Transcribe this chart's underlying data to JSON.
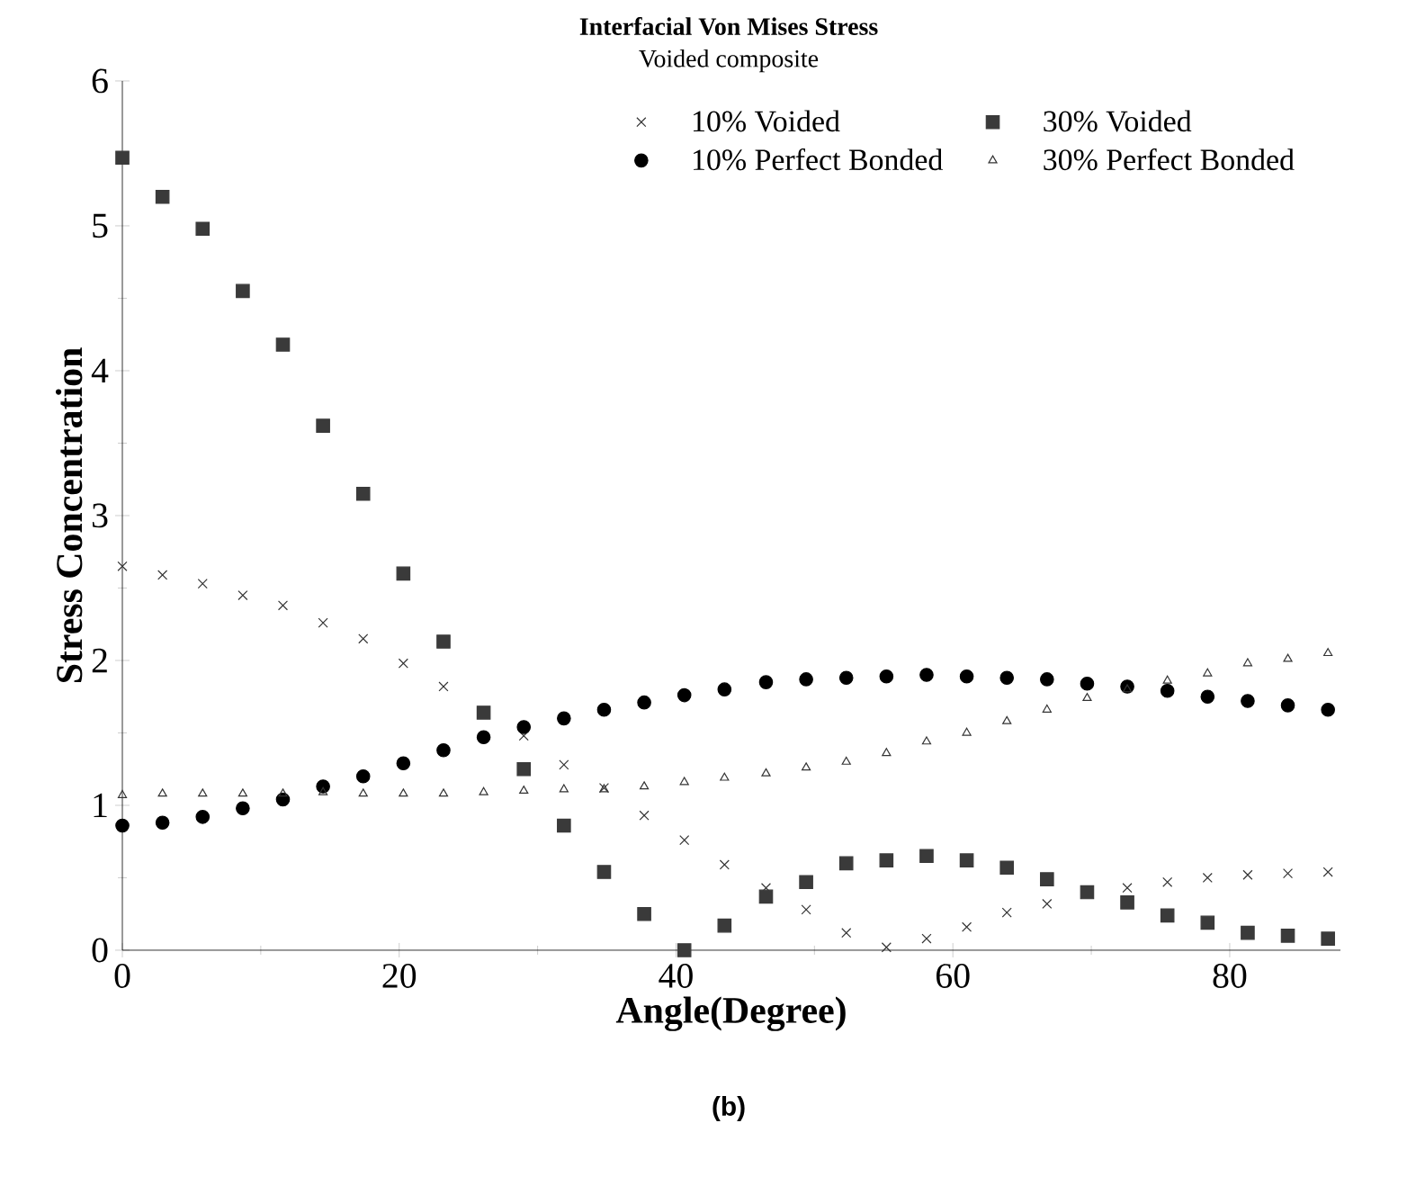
{
  "chart_data": {
    "type": "scatter",
    "title": "Interfacial Von Mises Stress",
    "subtitle": "Voided composite",
    "xlabel": "Angle(Degree)",
    "ylabel": "Stress Concentration",
    "annotations": [
      "(b)"
    ],
    "x": [
      0,
      2.9,
      5.8,
      8.7,
      11.6,
      14.5,
      17.4,
      20.3,
      23.2,
      26.1,
      29.0,
      31.9,
      34.8,
      37.7,
      40.6,
      43.5,
      46.5,
      49.4,
      52.3,
      55.2,
      58.1,
      61.0,
      63.9,
      66.8,
      69.7,
      72.6,
      75.5,
      78.4,
      81.3,
      84.2,
      87.1
    ],
    "series": [
      {
        "name": "10% Voided",
        "color": "#333333",
        "marker": "cross",
        "values": [
          2.65,
          2.59,
          2.53,
          2.45,
          2.38,
          2.26,
          2.15,
          1.98,
          1.82,
          null,
          1.48,
          1.28,
          1.12,
          0.93,
          0.76,
          0.59,
          0.43,
          0.28,
          0.12,
          0.02,
          0.08,
          0.16,
          0.26,
          0.32,
          null,
          0.43,
          0.47,
          0.5,
          0.52,
          0.53,
          0.54
        ]
      },
      {
        "name": "30% Voided",
        "color": "#3a3a3a",
        "marker": "square",
        "values": [
          5.47,
          5.2,
          4.98,
          4.55,
          4.18,
          3.62,
          3.15,
          2.6,
          2.13,
          1.64,
          1.25,
          0.86,
          0.54,
          0.25,
          0.0,
          0.17,
          0.37,
          0.47,
          0.6,
          0.62,
          0.65,
          0.62,
          0.57,
          0.49,
          0.4,
          0.33,
          0.24,
          0.19,
          0.12,
          0.1,
          0.08
        ]
      },
      {
        "name": "10% Perfect Bonded",
        "color": "#000000",
        "marker": "circle",
        "values": [
          0.86,
          0.88,
          0.92,
          0.98,
          1.04,
          1.13,
          1.2,
          1.29,
          1.38,
          1.47,
          1.54,
          1.6,
          1.66,
          1.71,
          1.76,
          1.8,
          1.85,
          1.87,
          1.88,
          1.89,
          1.9,
          1.89,
          1.88,
          1.87,
          1.84,
          1.82,
          1.79,
          1.75,
          1.72,
          1.69,
          1.66
        ]
      },
      {
        "name": "30% Perfect Bonded",
        "color": "#333333",
        "marker": "triangle",
        "values": [
          1.07,
          1.08,
          1.08,
          1.08,
          1.08,
          1.09,
          1.08,
          1.08,
          1.08,
          1.09,
          1.1,
          1.11,
          1.11,
          1.13,
          1.16,
          1.19,
          1.22,
          1.26,
          1.3,
          1.36,
          1.44,
          1.5,
          1.58,
          1.66,
          1.74,
          1.8,
          1.86,
          1.91,
          1.98,
          2.01,
          2.05
        ]
      }
    ],
    "xlim": [
      0,
      88
    ],
    "ylim": [
      0,
      6
    ],
    "xticks": [
      0,
      20,
      40,
      60,
      80
    ],
    "yticks": [
      0,
      1,
      2,
      3,
      4,
      5,
      6
    ],
    "legend": "top right",
    "grid": false
  }
}
